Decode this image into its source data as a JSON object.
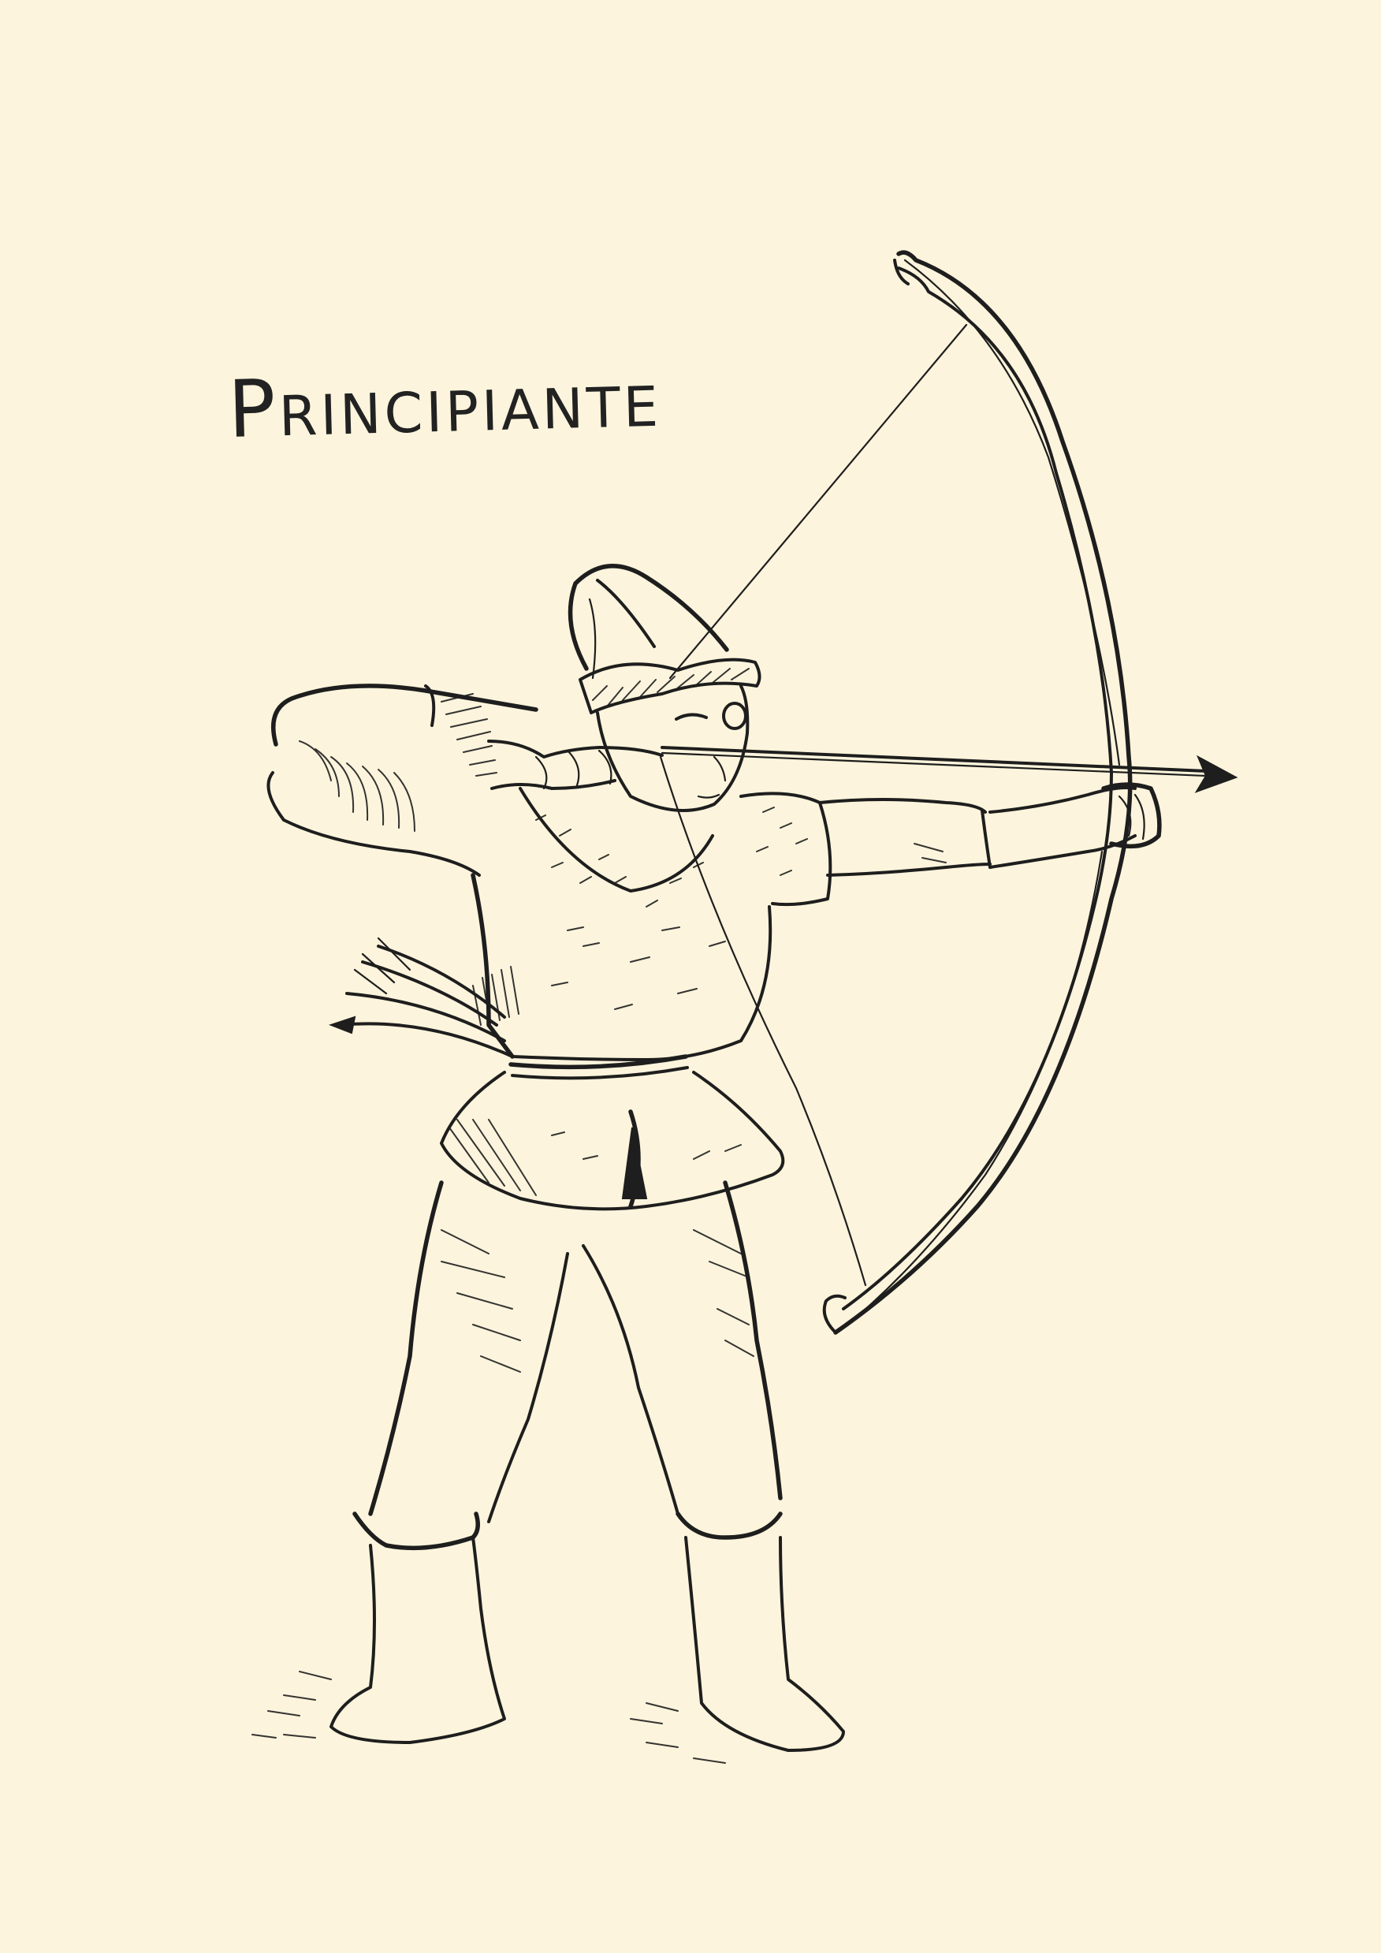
{
  "title": "Principiante",
  "colors": {
    "background": "#fcf4dc",
    "ink": "#1e1e1e"
  }
}
